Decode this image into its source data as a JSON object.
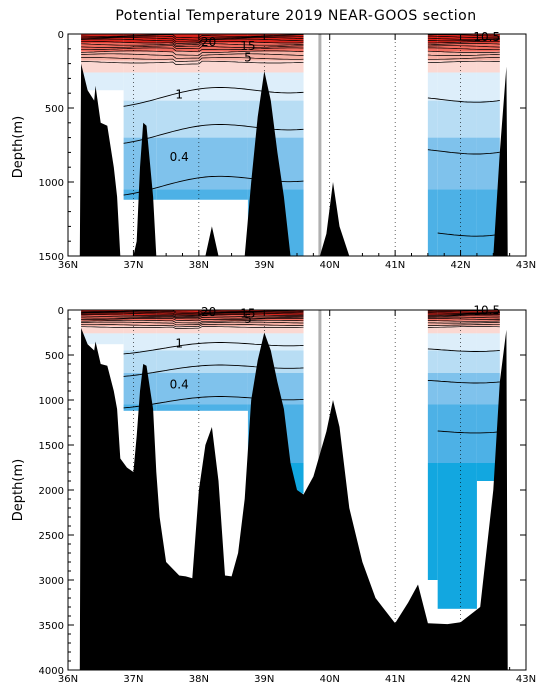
{
  "title": "Potential Temperature 2019 NEAR-GOOS section",
  "colors": {
    "background": "#ffffff",
    "seafloor": "#000000",
    "c_warm_dark": "#d9241c",
    "c_warm_mid": "#f26b5e",
    "c_warm_light": "#f7b1a5",
    "c_warm_pale": "#fbd8d2",
    "c_1": "#ddeefa",
    "c_05": "#b8ddf4",
    "c_04": "#7fc2ec",
    "c_035": "#4db1e6",
    "c_03": "#12a7e0",
    "section_gap": "#b0b0b0"
  },
  "chart_data": [
    {
      "type": "contour",
      "title": "Potential Temperature 2019 NEAR-GOOS section",
      "xlabel": "",
      "ylabel": "Depth(m)",
      "xlim": [
        36,
        43
      ],
      "ylim": [
        1500,
        0
      ],
      "x_ticks": [
        "36N",
        "37N",
        "38N",
        "39N",
        "40N",
        "41N",
        "42N",
        "43N"
      ],
      "y_ticks": [
        "0",
        "500",
        "1000",
        "1500"
      ],
      "contour_labels": [
        {
          "text": "20",
          "lat": 38.15,
          "depth": 55
        },
        {
          "text": "15",
          "lat": 38.75,
          "depth": 80
        },
        {
          "text": "5",
          "lat": 38.75,
          "depth": 160
        },
        {
          "text": "1",
          "lat": 37.7,
          "depth": 410
        },
        {
          "text": "0.4",
          "lat": 37.7,
          "depth": 830
        },
        {
          "text": "10.5",
          "lat": 42.4,
          "depth": 20
        }
      ]
    },
    {
      "type": "contour",
      "title": "",
      "xlabel": "",
      "ylabel": "Depth(m)",
      "xlim": [
        36,
        43
      ],
      "ylim": [
        4000,
        0
      ],
      "x_ticks": [
        "36N",
        "37N",
        "38N",
        "39N",
        "40N",
        "41N",
        "42N",
        "43N"
      ],
      "y_ticks": [
        "0",
        "500",
        "1000",
        "1500",
        "2000",
        "2500",
        "3000",
        "3500",
        "4000"
      ],
      "contour_labels": [
        {
          "text": "20",
          "lat": 38.15,
          "depth": 20
        },
        {
          "text": "15",
          "lat": 38.75,
          "depth": 40
        },
        {
          "text": "5",
          "lat": 38.75,
          "depth": 100
        },
        {
          "text": "1",
          "lat": 37.7,
          "depth": 370
        },
        {
          "text": "0.4",
          "lat": 37.7,
          "depth": 830
        },
        {
          "text": "10.5",
          "lat": 42.4,
          "depth": 5
        }
      ]
    }
  ],
  "bathymetry": [
    [
      36.18,
      4000
    ],
    [
      36.2,
      200
    ],
    [
      36.3,
      380
    ],
    [
      36.4,
      450
    ],
    [
      36.42,
      350
    ],
    [
      36.5,
      600
    ],
    [
      36.6,
      620
    ],
    [
      36.7,
      900
    ],
    [
      36.75,
      1100
    ],
    [
      36.8,
      1650
    ],
    [
      36.9,
      1750
    ],
    [
      37.0,
      1800
    ],
    [
      37.05,
      1400
    ],
    [
      37.1,
      900
    ],
    [
      37.15,
      600
    ],
    [
      37.2,
      620
    ],
    [
      37.3,
      1100
    ],
    [
      37.35,
      1800
    ],
    [
      37.4,
      2300
    ],
    [
      37.5,
      2800
    ],
    [
      37.7,
      2950
    ],
    [
      37.8,
      2960
    ],
    [
      37.9,
      2980
    ],
    [
      38.0,
      2000
    ],
    [
      38.1,
      1500
    ],
    [
      38.2,
      1300
    ],
    [
      38.3,
      1900
    ],
    [
      38.4,
      2950
    ],
    [
      38.5,
      2960
    ],
    [
      38.6,
      2700
    ],
    [
      38.7,
      2100
    ],
    [
      38.8,
      1000
    ],
    [
      38.9,
      560
    ],
    [
      39.0,
      250
    ],
    [
      39.1,
      450
    ],
    [
      39.2,
      800
    ],
    [
      39.3,
      1100
    ],
    [
      39.4,
      1700
    ],
    [
      39.5,
      2000
    ],
    [
      39.6,
      2050
    ],
    [
      39.75,
      1850
    ],
    [
      39.85,
      1600
    ],
    [
      39.95,
      1350
    ],
    [
      40.05,
      1000
    ],
    [
      40.15,
      1300
    ],
    [
      40.3,
      2200
    ],
    [
      40.5,
      2800
    ],
    [
      40.7,
      3200
    ],
    [
      41.0,
      3480
    ],
    [
      41.2,
      3250
    ],
    [
      41.35,
      3050
    ],
    [
      41.5,
      3480
    ],
    [
      41.8,
      3490
    ],
    [
      42.0,
      3470
    ],
    [
      42.3,
      3300
    ],
    [
      42.5,
      2000
    ],
    [
      42.6,
      800
    ],
    [
      42.7,
      220
    ],
    [
      42.72,
      4000
    ]
  ],
  "data_columns": [
    {
      "lon_from": 36.2,
      "lon_to": 36.85,
      "bottom": 380
    },
    {
      "lon_from": 36.85,
      "lon_to": 37.35,
      "bottom": 1120
    },
    {
      "lon_from": 37.35,
      "lon_to": 38.75,
      "bottom": 1120
    },
    {
      "lon_from": 38.75,
      "lon_to": 39.6,
      "bottom": 2040
    },
    {
      "lon_from": 41.5,
      "lon_to": 41.65,
      "bottom": 3000
    },
    {
      "lon_from": 41.65,
      "lon_to": 42.25,
      "bottom": 3320
    },
    {
      "lon_from": 42.25,
      "lon_to": 42.6,
      "bottom": 1900
    }
  ]
}
